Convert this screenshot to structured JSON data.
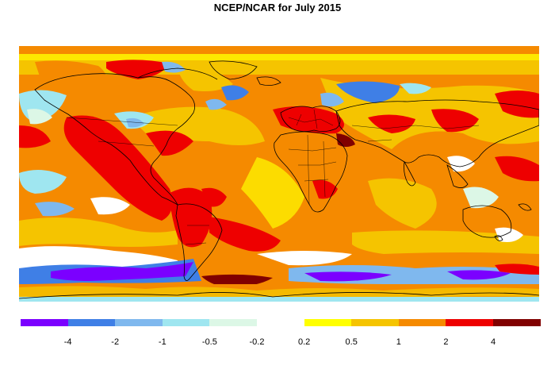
{
  "title": "NCEP/NCAR for July 2015",
  "map": {
    "projection": "equirectangular",
    "region": "global",
    "content": "surface temperature anomaly",
    "palette": {
      "deep_purple": "#7b00ff",
      "blue": "#3f7fe6",
      "light_blue": "#7fb8ee",
      "cyan": "#9fe6f0",
      "pale_green": "#dcf7e6",
      "white": "#ffffff",
      "yellow": "#ffff00",
      "gold": "#f5c400",
      "orange": "#f58a00",
      "red": "#ee0000",
      "dark_red": "#800000"
    }
  },
  "legend": {
    "colors": [
      "#7b00ff",
      "#3f7fe6",
      "#7fb8ee",
      "#9fe6f0",
      "#dcf7e6",
      "#ffffff",
      "#ffff00",
      "#f5c400",
      "#f58a00",
      "#ee0000",
      "#800000"
    ],
    "ticks": [
      "-4",
      "-2",
      "-1",
      "-0.5",
      "-0.2",
      "0.2",
      "0.5",
      "1",
      "2",
      "4"
    ]
  }
}
